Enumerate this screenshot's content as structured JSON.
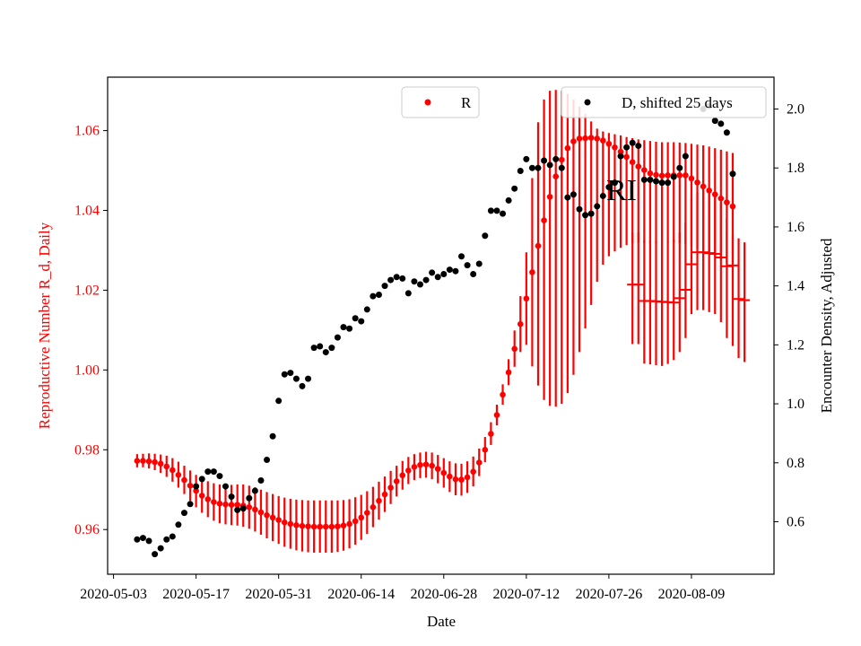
{
  "chart_data": {
    "type": "scatter",
    "xlabel": "Date",
    "ylabel_left": "Reproductive Number R_d, Daily",
    "ylabel_right": "Encounter Density, Adjusted",
    "annotation": "RI",
    "x_ticks": [
      "2020-05-03",
      "2020-05-17",
      "2020-05-31",
      "2020-06-14",
      "2020-06-28",
      "2020-07-12",
      "2020-07-26",
      "2020-08-09"
    ],
    "y_left_ticks": [
      "0.96",
      "0.98",
      "1.00",
      "1.02",
      "1.04",
      "1.06"
    ],
    "y_right_ticks": [
      "0.6",
      "0.8",
      "1.0",
      "1.2",
      "1.4",
      "1.6",
      "1.8",
      "2.0"
    ],
    "x_range": [
      "2020-05-02",
      "2020-08-23"
    ],
    "y_left_range": [
      0.9488,
      1.0734
    ],
    "y_right_range": [
      0.422,
      2.108
    ],
    "grid": false,
    "legend": [
      {
        "label": "R",
        "position": "top-center",
        "color": "#ff0000"
      },
      {
        "label": "D, shifted 25 days",
        "position": "top-right",
        "color": "#000000"
      }
    ],
    "colors": {
      "R": "#ff0000",
      "D": "#000000"
    },
    "series": [
      {
        "name": "R",
        "axis": "left",
        "x_start": "2020-05-07",
        "step_days": 1,
        "values": [
          0.9772,
          0.9772,
          0.9771,
          0.9769,
          0.9765,
          0.9758,
          0.9749,
          0.9737,
          0.9724,
          0.971,
          0.9697,
          0.9685,
          0.9676,
          0.9669,
          0.9665,
          0.9663,
          0.9662,
          0.9662,
          0.966,
          0.9656,
          0.965,
          0.9643,
          0.9636,
          0.963,
          0.9624,
          0.9618,
          0.9614,
          0.9611,
          0.9609,
          0.9608,
          0.9607,
          0.9607,
          0.9607,
          0.9607,
          0.9608,
          0.961,
          0.9614,
          0.9621,
          0.963,
          0.9642,
          0.9656,
          0.9672,
          0.9688,
          0.9705,
          0.9721,
          0.9736,
          0.9748,
          0.9757,
          0.9762,
          0.9763,
          0.976,
          0.9752,
          0.9742,
          0.9733,
          0.9726,
          0.9725,
          0.9731,
          0.9745,
          0.9768,
          0.98,
          0.984,
          0.9887,
          0.9938,
          0.9994,
          1.0053,
          1.0115,
          1.0179,
          1.0245,
          1.0311,
          1.0375,
          1.0434,
          1.0485,
          1.0527,
          1.0556,
          1.0573,
          1.058,
          1.0581,
          1.0582,
          1.058,
          1.0575,
          1.0567,
          1.0558,
          1.0547,
          1.0534,
          1.0521,
          1.051,
          1.0501,
          1.0493,
          1.0489,
          1.0487,
          1.0488,
          1.0488,
          1.0488,
          1.0488,
          1.048,
          1.047,
          1.046,
          1.045,
          1.044,
          1.043,
          1.042,
          1.041
        ],
        "lower": [
          0.9756,
          0.9756,
          0.9753,
          0.9749,
          0.9742,
          0.9732,
          0.972,
          0.9705,
          0.9689,
          0.9672,
          0.9656,
          0.9642,
          0.9631,
          0.9622,
          0.9616,
          0.9613,
          0.9611,
          0.961,
          0.9607,
          0.9602,
          0.9595,
          0.9587,
          0.9578,
          0.9571,
          0.9564,
          0.9557,
          0.9552,
          0.9548,
          0.9545,
          0.9543,
          0.9542,
          0.9542,
          0.9542,
          0.9542,
          0.9544,
          0.9547,
          0.9553,
          0.9562,
          0.9574,
          0.9589,
          0.9606,
          0.9625,
          0.9644,
          0.9664,
          0.9683,
          0.97,
          0.9714,
          0.9724,
          0.9729,
          0.973,
          0.9726,
          0.9716,
          0.9705,
          0.9694,
          0.9686,
          0.9685,
          0.9692,
          0.9708,
          0.9734,
          0.9769,
          0.9812,
          0.9861,
          0.9913,
          0.9962,
          1.0008,
          1.0045,
          1.0063,
          1.0009,
          0.9961,
          0.9925,
          0.991,
          0.9908,
          0.9915,
          0.9942,
          0.9988,
          1.0045,
          1.0104,
          1.0163,
          1.0221,
          1.0264,
          1.0285,
          1.0297,
          1.0306,
          1.0313,
          1.0318,
          1.0319,
          1.0318,
          1.0317,
          1.0318,
          1.0319,
          1.032,
          1.032,
          1.0318,
          1.0315,
          1.031,
          1.0304,
          1.0297,
          1.029,
          1.0283,
          1.0276,
          1.0268,
          1.026
        ],
        "upper": [
          0.9789,
          0.979,
          0.9791,
          0.979,
          0.9788,
          0.9785,
          0.9779,
          0.977,
          0.976,
          0.9748,
          0.9737,
          0.9728,
          0.9721,
          0.9716,
          0.9713,
          0.9712,
          0.9712,
          0.9713,
          0.9713,
          0.971,
          0.9706,
          0.97,
          0.9694,
          0.9689,
          0.9684,
          0.968,
          0.9677,
          0.9675,
          0.9674,
          0.9673,
          0.9673,
          0.9673,
          0.9673,
          0.9673,
          0.9673,
          0.9674,
          0.9676,
          0.9681,
          0.9687,
          0.9696,
          0.9707,
          0.972,
          0.9733,
          0.9747,
          0.976,
          0.9772,
          0.9782,
          0.9789,
          0.9793,
          0.9795,
          0.9793,
          0.9787,
          0.9779,
          0.9771,
          0.9766,
          0.9765,
          0.9771,
          0.9783,
          0.9803,
          0.9832,
          0.9869,
          0.9913,
          0.9964,
          1.0027,
          1.0099,
          1.0185,
          1.0295,
          1.0481,
          1.0621,
          1.0678,
          1.07,
          1.0702,
          1.07,
          1.0692,
          1.0678,
          1.066,
          1.0642,
          1.0623,
          1.0605,
          1.0598,
          1.0594,
          1.0591,
          1.0588,
          1.0584,
          1.0581,
          1.0578,
          1.0576,
          1.0574,
          1.0572,
          1.0571,
          1.0571,
          1.0571,
          1.057,
          1.0569,
          1.0567,
          1.0565,
          1.0563,
          1.056,
          1.0556,
          1.0552,
          1.0548,
          1.0544
        ]
      },
      {
        "name": "R_ranges",
        "axis": "left",
        "markers": "dash",
        "x_start": "2020-07-30",
        "step_days": 1,
        "values": [
          1.0214,
          1.0214,
          1.0173,
          1.0173,
          1.0172,
          1.0171,
          1.017,
          1.0169,
          1.018,
          1.0201,
          1.0265,
          1.0295,
          1.0295,
          1.0293,
          1.0291,
          1.0282,
          1.026,
          1.0262,
          1.0178,
          1.0175
        ],
        "lower": [
          1.0065,
          1.0065,
          1.0016,
          1.0014,
          1.0012,
          1.001,
          1.0015,
          1.0025,
          1.0045,
          1.008,
          1.014,
          1.015,
          1.015,
          1.0145,
          1.014,
          1.012,
          1.008,
          1.006,
          1.003,
          1.002
        ],
        "upper": [
          1.0345,
          1.0345,
          1.0325,
          1.0325,
          1.0322,
          1.032,
          1.0322,
          1.0326,
          1.0345,
          1.037,
          1.043,
          1.0445,
          1.0448,
          1.0446,
          1.044,
          1.042,
          1.038,
          1.034,
          1.033,
          1.032
        ]
      },
      {
        "name": "D, shifted 25 days",
        "axis": "right",
        "x_start": "2020-05-07",
        "step_days": 1,
        "values": [
          0.54,
          0.545,
          0.535,
          0.49,
          0.51,
          0.54,
          0.55,
          0.59,
          0.63,
          0.66,
          0.72,
          0.745,
          0.77,
          0.77,
          0.755,
          0.72,
          0.685,
          0.64,
          0.645,
          0.68,
          0.705,
          0.74,
          0.81,
          0.89,
          1.01,
          1.1,
          1.105,
          1.085,
          1.06,
          1.085,
          1.19,
          1.195,
          1.175,
          1.19,
          1.225,
          1.26,
          1.255,
          1.29,
          1.28,
          1.32,
          1.365,
          1.37,
          1.4,
          1.42,
          1.43,
          1.425,
          1.375,
          1.415,
          1.405,
          1.42,
          1.445,
          1.43,
          1.44,
          1.455,
          1.45,
          1.5,
          1.47,
          1.44,
          1.475,
          1.57,
          1.655,
          1.655,
          1.645,
          1.69,
          1.73,
          1.79,
          1.83,
          1.8,
          1.8,
          1.825,
          1.81,
          1.83,
          1.8,
          1.7,
          1.71,
          1.66,
          1.64,
          1.645,
          1.67,
          1.705,
          1.735,
          1.75,
          1.84,
          1.87,
          1.885,
          1.875,
          1.76,
          1.76,
          1.755,
          1.75,
          1.75,
          1.77,
          1.8,
          1.84,
          null,
          null,
          2.0,
          2.01,
          1.96,
          1.95,
          1.92,
          1.78
        ]
      }
    ]
  }
}
